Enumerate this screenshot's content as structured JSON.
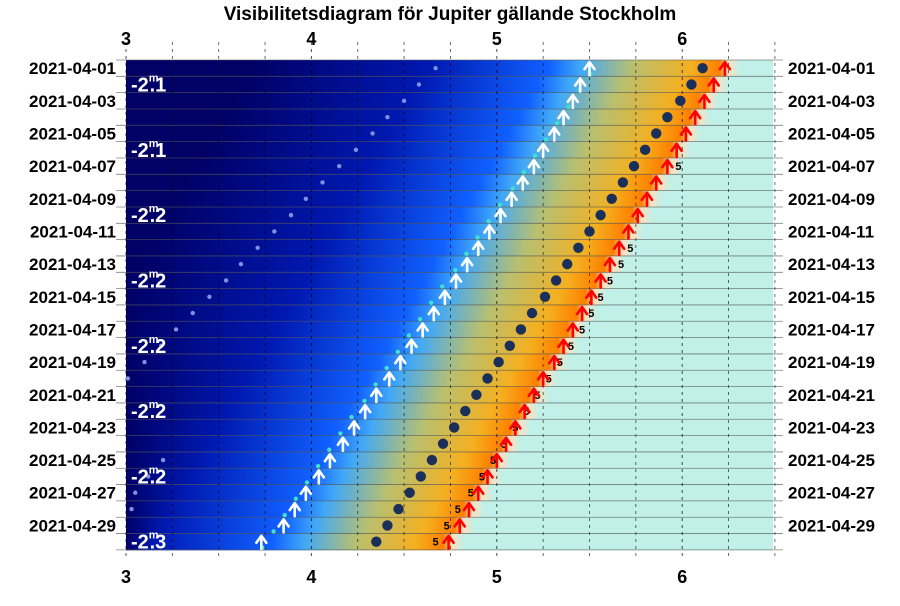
{
  "title": "Visibilitetsdiagram för Jupiter gällande Stockholm",
  "chart_data": {
    "type": "visibility-diagram",
    "title": "Visibilitetsdiagram för Jupiter gällande Stockholm",
    "xlabel": "",
    "ylabel": "",
    "x_unit": "hour",
    "xlim": [
      3,
      6.5
    ],
    "x_ticks": [
      {
        "value": 3,
        "label": "3"
      },
      {
        "value": 4,
        "label": "4"
      },
      {
        "value": 5,
        "label": "5"
      },
      {
        "value": 6,
        "label": "6"
      }
    ],
    "dates": [
      "2021-04-01",
      "2021-04-02",
      "2021-04-03",
      "2021-04-04",
      "2021-04-05",
      "2021-04-06",
      "2021-04-07",
      "2021-04-08",
      "2021-04-09",
      "2021-04-10",
      "2021-04-11",
      "2021-04-12",
      "2021-04-13",
      "2021-04-14",
      "2021-04-15",
      "2021-04-16",
      "2021-04-17",
      "2021-04-18",
      "2021-04-19",
      "2021-04-20",
      "2021-04-21",
      "2021-04-22",
      "2021-04-23",
      "2021-04-24",
      "2021-04-25",
      "2021-04-26",
      "2021-04-27",
      "2021-04-28",
      "2021-04-29",
      "2021-04-30"
    ],
    "date_labels": [
      "2021-04-01",
      "2021-04-03",
      "2021-04-05",
      "2021-04-07",
      "2021-04-09",
      "2021-04-11",
      "2021-04-13",
      "2021-04-15",
      "2021-04-17",
      "2021-04-19",
      "2021-04-21",
      "2021-04-23",
      "2021-04-25",
      "2021-04-27",
      "2021-04-29"
    ],
    "magnitudes": [
      {
        "date": "2021-04-02",
        "value": "-2.1"
      },
      {
        "date": "2021-04-06",
        "value": "-2.1"
      },
      {
        "date": "2021-04-10",
        "value": "-2.2"
      },
      {
        "date": "2021-04-14",
        "value": "-2.2"
      },
      {
        "date": "2021-04-18",
        "value": "-2.2"
      },
      {
        "date": "2021-04-22",
        "value": "-2.2"
      },
      {
        "date": "2021-04-26",
        "value": "-2.2"
      },
      {
        "date": "2021-04-30",
        "value": "-2.3"
      }
    ],
    "magnitude_unit": "m",
    "series": [
      {
        "name": "",
        "kind": "rise-blue-arrow",
        "values": [
          5.5,
          5.45,
          5.41,
          5.36,
          5.31,
          5.25,
          5.2,
          5.14,
          5.08,
          5.02,
          4.96,
          4.9,
          4.84,
          4.78,
          4.72,
          4.66,
          4.6,
          4.54,
          4.48,
          4.42,
          4.35,
          4.29,
          4.23,
          4.17,
          4.1,
          4.04,
          3.97,
          3.91,
          3.85,
          3.73
        ]
      },
      {
        "name": "",
        "kind": "twilight-cyan-dot",
        "values": [
          5.49,
          5.43,
          5.37,
          5.31,
          5.25,
          5.19,
          5.13,
          5.07,
          5.0,
          4.94,
          4.88,
          4.82,
          4.76,
          4.69,
          4.63,
          4.57,
          4.51,
          4.45,
          4.39,
          4.33,
          4.27,
          4.2,
          4.14,
          4.08,
          4.02,
          3.96,
          3.9,
          3.84,
          3.78,
          3.72
        ]
      },
      {
        "name": "",
        "kind": "jupiter-dark-dot",
        "values": [
          6.11,
          6.05,
          5.99,
          5.92,
          5.86,
          5.8,
          5.74,
          5.68,
          5.62,
          5.56,
          5.5,
          5.44,
          5.38,
          5.32,
          5.26,
          5.19,
          5.13,
          5.07,
          5.01,
          4.95,
          4.89,
          4.83,
          4.77,
          4.71,
          4.65,
          4.59,
          4.53,
          4.47,
          4.41,
          4.35
        ]
      },
      {
        "name": "",
        "kind": "sunrise-red-arrow",
        "values": [
          6.23,
          6.17,
          6.12,
          6.07,
          6.02,
          5.97,
          5.92,
          5.86,
          5.81,
          5.76,
          5.71,
          5.66,
          5.61,
          5.56,
          5.51,
          5.46,
          5.41,
          5.36,
          5.31,
          5.25,
          5.2,
          5.15,
          5.1,
          5.05,
          5.0,
          4.95,
          4.9,
          4.85,
          4.8,
          4.74
        ]
      },
      {
        "name": "",
        "kind": "moon-faint-dot",
        "values": [
          4.67,
          4.58,
          4.5,
          4.41,
          4.33,
          4.24,
          4.15,
          4.06,
          3.97,
          3.89,
          3.8,
          3.71,
          3.62,
          3.54,
          3.45,
          3.36,
          3.27,
          3.19,
          3.1,
          3.01,
          null,
          null,
          null,
          null,
          3.2,
          3.12,
          3.05,
          3.03,
          null,
          null
        ]
      }
    ],
    "five_label": "5",
    "five_markers": [
      {
        "date": "2021-04-07",
        "value": 5.98
      },
      {
        "date": "2021-04-12",
        "value": 5.72
      },
      {
        "date": "2021-04-13",
        "value": 5.67
      },
      {
        "date": "2021-04-14",
        "value": 5.61
      },
      {
        "date": "2021-04-15",
        "value": 5.56
      },
      {
        "date": "2021-04-16",
        "value": 5.51
      },
      {
        "date": "2021-04-17",
        "value": 5.46
      },
      {
        "date": "2021-04-18",
        "value": 5.4
      },
      {
        "date": "2021-04-19",
        "value": 5.34
      },
      {
        "date": "2021-04-20",
        "value": 5.28
      },
      {
        "date": "2021-04-21",
        "value": 5.22
      },
      {
        "date": "2021-04-22",
        "value": 5.16
      },
      {
        "date": "2021-04-23",
        "value": 5.1
      },
      {
        "date": "2021-04-24",
        "value": 5.04
      },
      {
        "date": "2021-04-25",
        "value": 4.98
      },
      {
        "date": "2021-04-26",
        "value": 4.92
      },
      {
        "date": "2021-04-27",
        "value": 4.86
      },
      {
        "date": "2021-04-28",
        "value": 4.79
      },
      {
        "date": "2021-04-29",
        "value": 4.73
      },
      {
        "date": "2021-04-30",
        "value": 4.67
      }
    ],
    "colors": {
      "night": "#000066",
      "astronomical": "#0018b0",
      "nautical": "#1060ff",
      "civil_blue": "#40a8f8",
      "civil_green": "#b8c070",
      "twilight_gold": "#f4b020",
      "sunrise_orange": "#ff8000",
      "day": "#c0f0e8",
      "blue_arrow": "#ffffff",
      "cyan_dot": "#40e0d0",
      "jupiter_dot": "#1a2f5a",
      "red_arrow": "#ff0000",
      "moon_dot": "#8090e0",
      "grid": "#000000"
    },
    "grid": true
  }
}
